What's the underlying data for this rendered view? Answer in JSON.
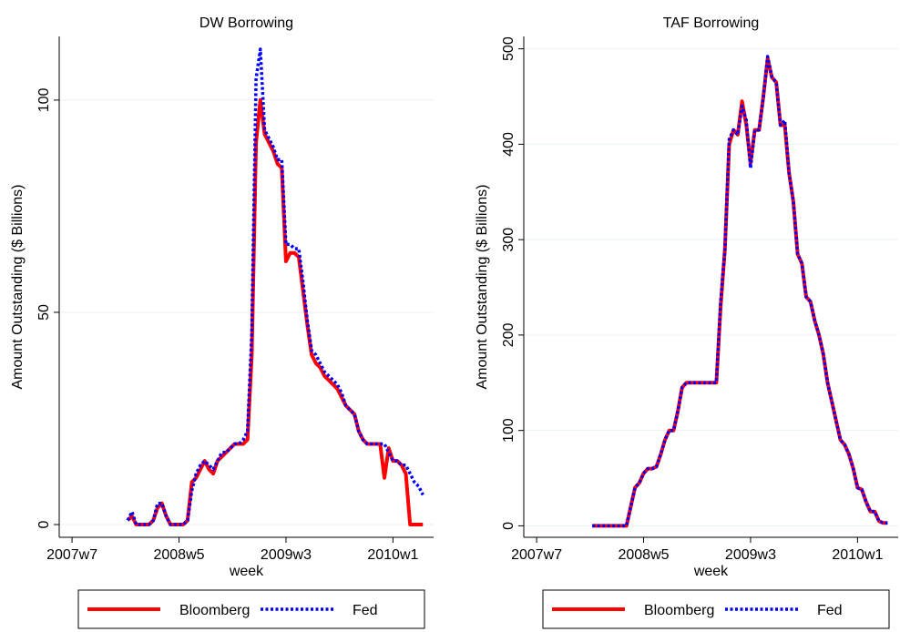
{
  "chart_data": [
    {
      "type": "line",
      "title": "DW Borrowing",
      "x_label": "week",
      "y_label": "Amount Outstanding ($ Billions)",
      "x": [
        "2007w33",
        "2007w35",
        "2007w37",
        "2007w39",
        "2007w41",
        "2007w43",
        "2007w45",
        "2007w47",
        "2007w49",
        "2007w51",
        "2008w1",
        "2008w3",
        "2008w5",
        "2008w7",
        "2008w9",
        "2008w11",
        "2008w13",
        "2008w15",
        "2008w17",
        "2008w19",
        "2008w21",
        "2008w23",
        "2008w25",
        "2008w27",
        "2008w29",
        "2008w31",
        "2008w33",
        "2008w35",
        "2008w37",
        "2008w39",
        "2008w41",
        "2008w43",
        "2008w45",
        "2008w47",
        "2008w49",
        "2008w51",
        "2009w1",
        "2009w3",
        "2009w5",
        "2009w7",
        "2009w9",
        "2009w11",
        "2009w13",
        "2009w15",
        "2009w17",
        "2009w19",
        "2009w21",
        "2009w23",
        "2009w25",
        "2009w27",
        "2009w29",
        "2009w31",
        "2009w33",
        "2009w35",
        "2009w37",
        "2009w39",
        "2009w41",
        "2009w43",
        "2009w45",
        "2009w47",
        "2009w49",
        "2009w51",
        "2010w1",
        "2010w3",
        "2010w5",
        "2010w7",
        "2010w9",
        "2010w11",
        "2010w13",
        "2010w15"
      ],
      "series": [
        {
          "name": "Bloomberg",
          "color": "#ff0000",
          "style": "solid",
          "values": [
            1,
            2,
            0,
            0,
            0,
            0,
            1,
            4,
            5,
            2,
            0,
            0,
            0,
            0,
            1,
            10,
            11,
            13,
            15,
            13,
            12,
            15,
            16,
            17,
            18,
            19,
            19,
            19,
            20,
            40,
            90,
            100,
            92,
            90,
            88,
            85,
            84,
            62,
            64,
            64,
            63,
            55,
            47,
            40,
            38,
            37,
            35,
            34,
            33,
            32,
            30,
            28,
            27,
            26,
            22,
            20,
            19,
            19,
            19,
            19,
            11,
            18,
            15,
            15,
            14,
            12,
            0,
            0,
            0,
            0
          ]
        },
        {
          "name": "Fed",
          "color": "#0000ff",
          "style": "dot",
          "values": [
            1,
            3,
            0,
            0,
            0,
            0,
            1,
            5,
            5,
            2,
            0,
            0,
            0,
            0,
            1,
            8,
            12,
            14,
            15,
            14,
            13,
            15,
            17,
            17,
            18,
            19,
            19,
            20,
            22,
            45,
            105,
            112,
            93,
            91,
            89,
            86,
            86,
            66,
            66,
            65,
            65,
            57,
            48,
            41,
            40,
            38,
            36,
            35,
            34,
            33,
            31,
            28,
            27,
            26,
            22,
            20,
            19,
            19,
            19,
            19,
            19,
            17,
            15,
            15,
            14,
            14,
            12,
            10,
            9,
            7
          ]
        }
      ],
      "xlim": [
        "2007w1",
        "2010w20"
      ],
      "xticks": [
        "2007w7",
        "2008w5",
        "2009w3",
        "2010w1"
      ],
      "ylim": [
        -3,
        115
      ],
      "yticks": [
        0,
        50,
        100
      ],
      "grid": true,
      "legend": "bottom"
    },
    {
      "type": "line",
      "title": "TAF Borrowing",
      "x_label": "week",
      "y_label": "Amount Outstanding ($ Billions)",
      "x": [
        "2007w33",
        "2007w35",
        "2007w37",
        "2007w39",
        "2007w41",
        "2007w43",
        "2007w45",
        "2007w47",
        "2007w49",
        "2007w51",
        "2008w1",
        "2008w3",
        "2008w5",
        "2008w7",
        "2008w9",
        "2008w11",
        "2008w13",
        "2008w15",
        "2008w17",
        "2008w19",
        "2008w21",
        "2008w23",
        "2008w25",
        "2008w27",
        "2008w29",
        "2008w31",
        "2008w33",
        "2008w35",
        "2008w37",
        "2008w39",
        "2008w41",
        "2008w43",
        "2008w45",
        "2008w47",
        "2008w49",
        "2008w51",
        "2009w1",
        "2009w3",
        "2009w5",
        "2009w7",
        "2009w9",
        "2009w11",
        "2009w13",
        "2009w15",
        "2009w17",
        "2009w19",
        "2009w21",
        "2009w23",
        "2009w25",
        "2009w27",
        "2009w29",
        "2009w31",
        "2009w33",
        "2009w35",
        "2009w37",
        "2009w39",
        "2009w41",
        "2009w43",
        "2009w45",
        "2009w47",
        "2009w49",
        "2009w51",
        "2010w1",
        "2010w3",
        "2010w5",
        "2010w7",
        "2010w9",
        "2010w11",
        "2010w13",
        "2010w15"
      ],
      "series": [
        {
          "name": "Bloomberg",
          "color": "#ff0000",
          "style": "solid",
          "values": [
            0,
            0,
            0,
            0,
            0,
            0,
            0,
            0,
            0,
            20,
            40,
            45,
            55,
            60,
            60,
            62,
            75,
            90,
            100,
            100,
            120,
            145,
            150,
            150,
            150,
            150,
            150,
            150,
            150,
            150,
            230,
            290,
            400,
            415,
            410,
            445,
            420,
            380,
            415,
            415,
            450,
            490,
            470,
            465,
            420,
            420,
            370,
            340,
            285,
            275,
            240,
            235,
            215,
            200,
            180,
            150,
            130,
            110,
            90,
            85,
            75,
            60,
            40,
            38,
            25,
            15,
            15,
            5,
            3,
            3
          ]
        },
        {
          "name": "Fed",
          "color": "#0000ff",
          "style": "dot",
          "values": [
            0,
            0,
            0,
            0,
            0,
            0,
            0,
            0,
            0,
            20,
            40,
            45,
            55,
            60,
            60,
            62,
            75,
            90,
            100,
            100,
            120,
            145,
            150,
            150,
            150,
            150,
            150,
            150,
            150,
            150,
            235,
            290,
            405,
            415,
            410,
            440,
            425,
            375,
            415,
            415,
            450,
            492,
            470,
            465,
            420,
            425,
            370,
            340,
            285,
            275,
            240,
            235,
            215,
            200,
            180,
            150,
            130,
            110,
            90,
            85,
            75,
            60,
            40,
            38,
            25,
            15,
            15,
            5,
            3,
            3
          ]
        }
      ],
      "xlim": [
        "2007w1",
        "2010w20"
      ],
      "xticks": [
        "2007w7",
        "2008w5",
        "2009w3",
        "2010w1"
      ],
      "ylim": [
        -12,
        513
      ],
      "yticks": [
        0,
        100,
        200,
        300,
        400,
        500
      ],
      "grid": true,
      "legend": "bottom"
    }
  ]
}
